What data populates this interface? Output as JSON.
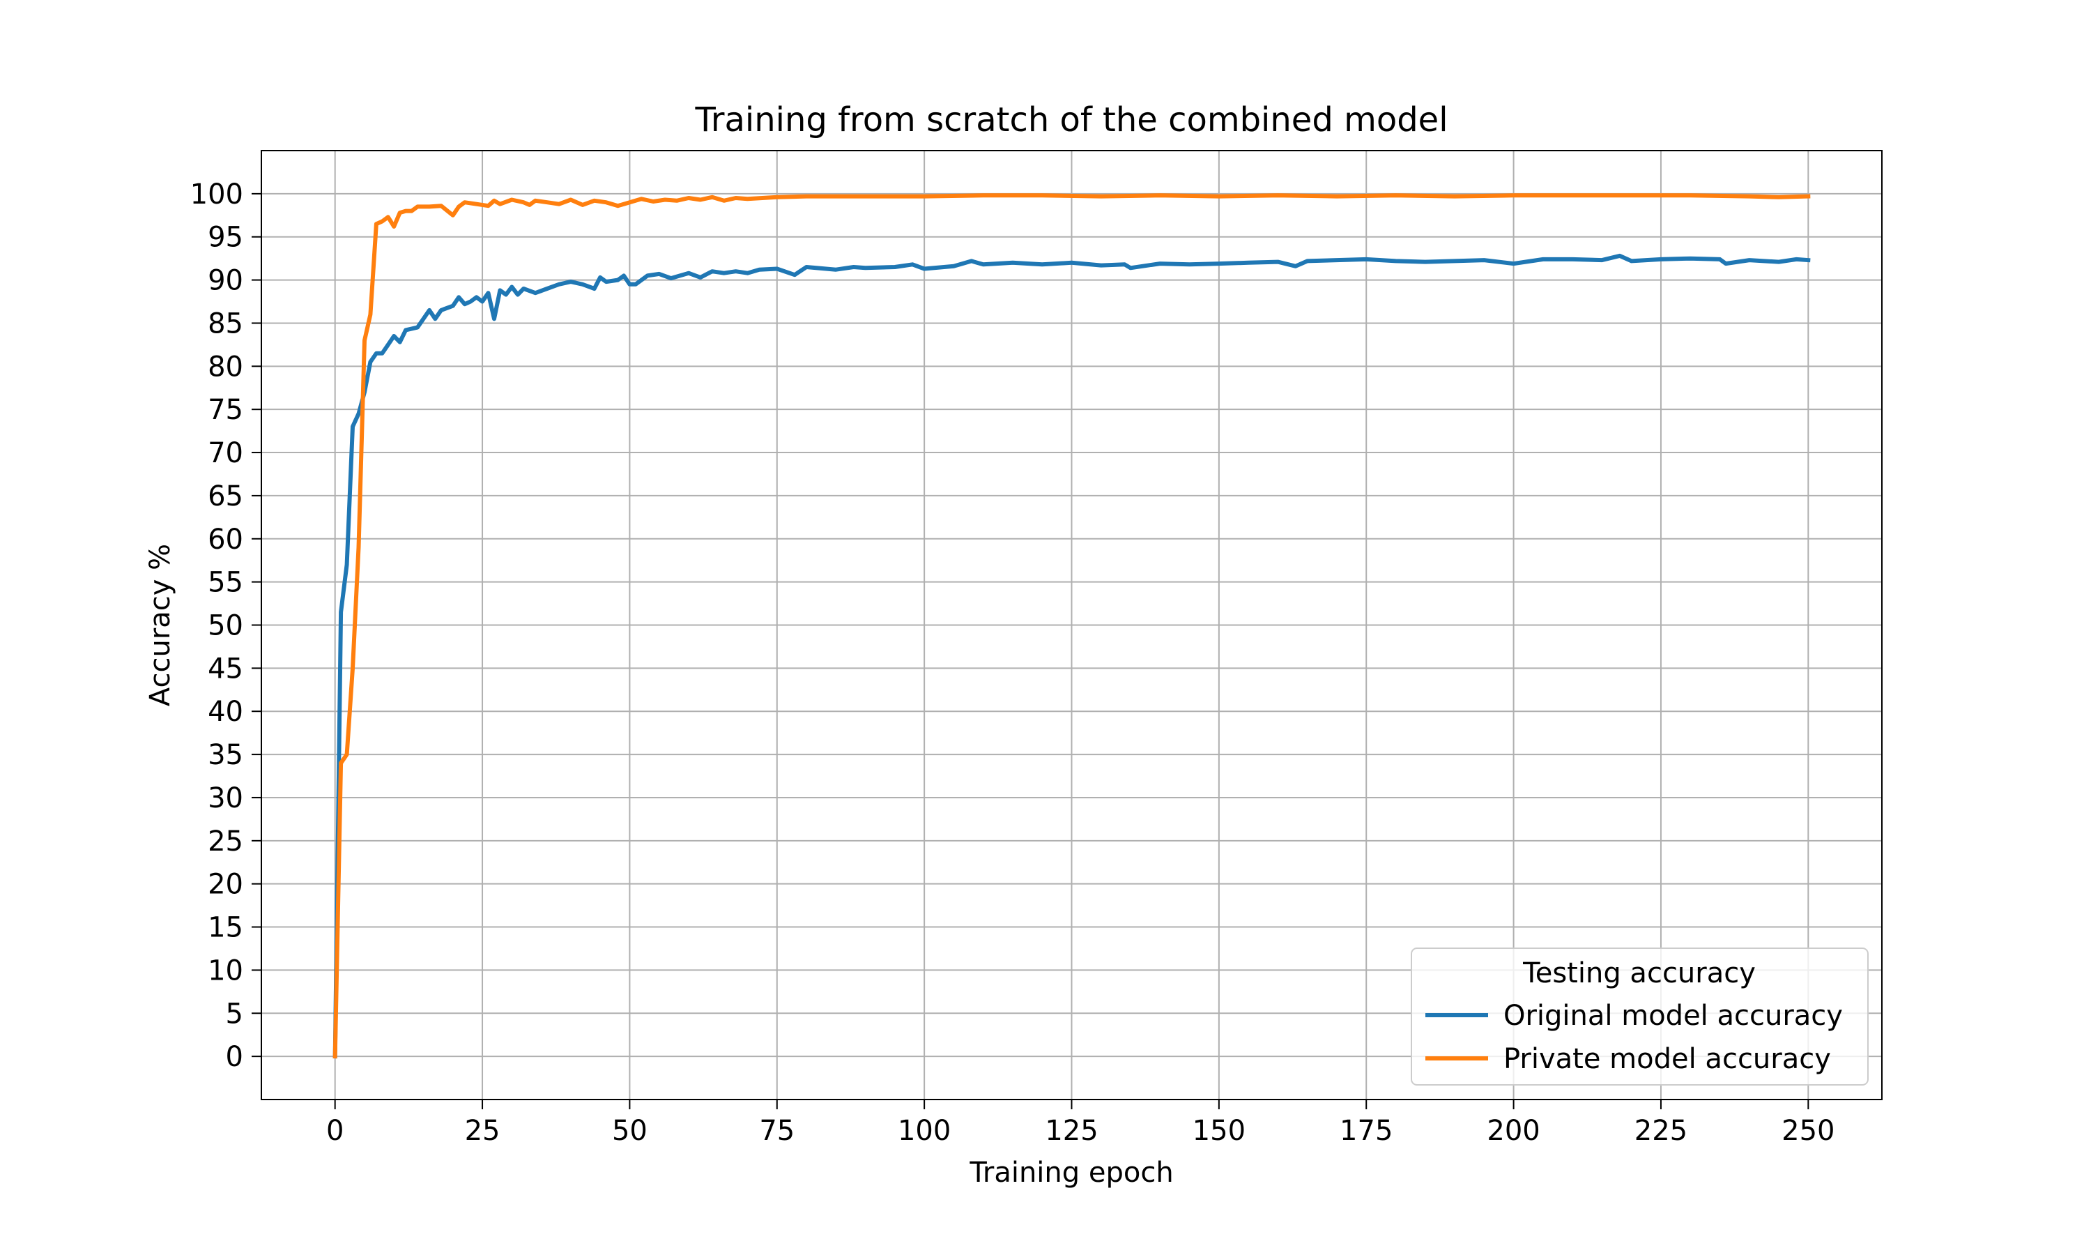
{
  "chart_data": {
    "type": "line",
    "title": "Training from scratch of the combined model",
    "xlabel": "Training epoch",
    "ylabel": "Accuracy %",
    "xlim": [
      -12.5,
      262.5
    ],
    "ylim": [
      -5,
      105
    ],
    "xticks": [
      0,
      25,
      50,
      75,
      100,
      125,
      150,
      175,
      200,
      225,
      250
    ],
    "yticks": [
      0,
      5,
      10,
      15,
      20,
      25,
      30,
      35,
      40,
      45,
      50,
      55,
      60,
      65,
      70,
      75,
      80,
      85,
      90,
      95,
      100
    ],
    "grid": true,
    "legend": {
      "title": "Testing accuracy",
      "position": "bottom-right"
    },
    "series": [
      {
        "name": "Original model accuracy",
        "color": "#1f77b4",
        "x": [
          0,
          1,
          2,
          3,
          4,
          5,
          6,
          7,
          8,
          9,
          10,
          11,
          12,
          14,
          16,
          17,
          18,
          20,
          21,
          22,
          23,
          24,
          25,
          26,
          27,
          28,
          29,
          30,
          31,
          32,
          34,
          36,
          38,
          40,
          42,
          44,
          45,
          46,
          48,
          49,
          50,
          51,
          53,
          55,
          57,
          60,
          62,
          64,
          66,
          68,
          70,
          72,
          75,
          78,
          80,
          85,
          88,
          90,
          95,
          98,
          100,
          105,
          108,
          110,
          115,
          120,
          125,
          130,
          134,
          135,
          140,
          145,
          150,
          155,
          160,
          163,
          165,
          170,
          175,
          180,
          185,
          190,
          195,
          200,
          205,
          210,
          215,
          218,
          220,
          225,
          230,
          235,
          236,
          240,
          245,
          248,
          250
        ],
        "y": [
          0,
          51.5,
          57,
          73,
          74.5,
          77,
          80.5,
          81.5,
          81.5,
          82.5,
          83.5,
          82.8,
          84.2,
          84.5,
          86.5,
          85.5,
          86.5,
          87,
          88,
          87.2,
          87.5,
          88,
          87.5,
          88.5,
          85.5,
          88.8,
          88.3,
          89.2,
          88.3,
          89,
          88.5,
          89,
          89.5,
          89.8,
          89.5,
          89,
          90.3,
          89.8,
          90,
          90.5,
          89.5,
          89.5,
          90.5,
          90.7,
          90.2,
          90.8,
          90.3,
          91,
          90.8,
          91,
          90.8,
          91.2,
          91.3,
          90.6,
          91.5,
          91.2,
          91.5,
          91.4,
          91.5,
          91.8,
          91.3,
          91.6,
          92.2,
          91.8,
          92,
          91.8,
          92,
          91.7,
          91.8,
          91.4,
          91.9,
          91.8,
          91.9,
          92,
          92.1,
          91.6,
          92.2,
          92.3,
          92.4,
          92.2,
          92.1,
          92.2,
          92.3,
          91.9,
          92.4,
          92.4,
          92.3,
          92.8,
          92.2,
          92.4,
          92.5,
          92.4,
          91.9,
          92.3,
          92.1,
          92.4,
          92.3
        ]
      },
      {
        "name": "Private model accuracy",
        "color": "#ff7f0e",
        "x": [
          0,
          1,
          2,
          3,
          4,
          5,
          6,
          7,
          8,
          9,
          10,
          11,
          12,
          13,
          14,
          15,
          16,
          18,
          20,
          21,
          22,
          24,
          26,
          27,
          28,
          30,
          32,
          33,
          34,
          36,
          38,
          40,
          42,
          44,
          46,
          48,
          50,
          52,
          54,
          56,
          58,
          60,
          62,
          64,
          66,
          68,
          70,
          75,
          80,
          90,
          100,
          110,
          120,
          130,
          140,
          150,
          160,
          170,
          180,
          190,
          200,
          210,
          220,
          230,
          240,
          245,
          250
        ],
        "y": [
          0,
          34,
          35,
          45,
          59,
          83,
          86,
          96.5,
          96.8,
          97.3,
          96.2,
          97.8,
          98,
          98,
          98.5,
          98.5,
          98.5,
          98.6,
          97.5,
          98.5,
          99,
          98.8,
          98.6,
          99.2,
          98.8,
          99.3,
          99,
          98.7,
          99.2,
          99,
          98.8,
          99.3,
          98.7,
          99.2,
          99,
          98.6,
          99,
          99.4,
          99.1,
          99.3,
          99.2,
          99.5,
          99.3,
          99.6,
          99.2,
          99.5,
          99.4,
          99.6,
          99.7,
          99.7,
          99.7,
          99.8,
          99.8,
          99.7,
          99.8,
          99.7,
          99.8,
          99.7,
          99.8,
          99.7,
          99.8,
          99.8,
          99.8,
          99.8,
          99.7,
          99.6,
          99.7
        ]
      }
    ]
  }
}
